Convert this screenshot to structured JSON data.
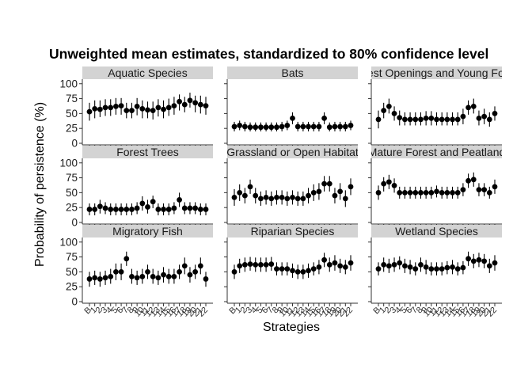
{
  "chart_data": {
    "type": "scatter",
    "title": "Unweighted mean estimates, standardized to 80% confidence level",
    "xlabel": "Strategies",
    "ylabel": "Probability of persistence (%)",
    "ylim": [
      0,
      105
    ],
    "yticks": [
      0,
      25,
      50,
      75,
      100
    ],
    "x": [
      "B",
      "1",
      "2",
      "3",
      "4",
      "5",
      "6",
      "7",
      "8",
      "9",
      "10",
      "11",
      "12",
      "13",
      "14",
      "15",
      "16",
      "17",
      "18",
      "19",
      "20",
      "21",
      "22"
    ],
    "grid": false,
    "error_bars": true,
    "marker_color": "#000000",
    "strip_color": "#d3d3d3",
    "facets": [
      {
        "name": "Aquatic Species",
        "values": [
          53,
          58,
          57,
          60,
          60,
          62,
          63,
          55,
          55,
          62,
          58,
          56,
          55,
          60,
          57,
          60,
          63,
          70,
          65,
          72,
          68,
          65,
          63
        ],
        "lower": [
          38,
          42,
          44,
          46,
          46,
          48,
          48,
          42,
          42,
          47,
          42,
          42,
          40,
          45,
          42,
          46,
          48,
          55,
          52,
          60,
          52,
          50,
          48
        ],
        "upper": [
          68,
          72,
          72,
          74,
          74,
          76,
          76,
          68,
          68,
          76,
          72,
          70,
          70,
          74,
          72,
          75,
          78,
          82,
          78,
          85,
          80,
          80,
          78
        ]
      },
      {
        "name": "Bats",
        "values": [
          28,
          30,
          28,
          27,
          27,
          27,
          27,
          27,
          27,
          28,
          30,
          42,
          28,
          28,
          28,
          28,
          28,
          42,
          27,
          28,
          28,
          28,
          30
        ],
        "lower": [
          20,
          22,
          20,
          20,
          20,
          20,
          20,
          20,
          20,
          20,
          22,
          32,
          20,
          20,
          20,
          20,
          20,
          32,
          20,
          20,
          20,
          20,
          22
        ],
        "upper": [
          36,
          38,
          36,
          35,
          35,
          35,
          35,
          35,
          35,
          36,
          38,
          52,
          36,
          36,
          36,
          36,
          36,
          52,
          35,
          36,
          36,
          36,
          38
        ]
      },
      {
        "name": "Forest Openings and Young Forest",
        "values": [
          40,
          55,
          62,
          50,
          43,
          40,
          40,
          40,
          40,
          42,
          42,
          40,
          40,
          40,
          40,
          40,
          45,
          60,
          62,
          42,
          45,
          40,
          50
        ],
        "lower": [
          25,
          42,
          50,
          38,
          30,
          30,
          30,
          30,
          30,
          30,
          30,
          30,
          30,
          30,
          30,
          30,
          32,
          48,
          50,
          30,
          32,
          28,
          38
        ],
        "upper": [
          55,
          68,
          75,
          62,
          55,
          52,
          52,
          52,
          52,
          54,
          54,
          52,
          52,
          52,
          52,
          52,
          58,
          72,
          75,
          55,
          58,
          52,
          62
        ]
      },
      {
        "name": "Forest Trees",
        "values": [
          22,
          22,
          27,
          24,
          22,
          22,
          22,
          22,
          22,
          24,
          32,
          26,
          35,
          22,
          22,
          22,
          24,
          38,
          24,
          24,
          24,
          22,
          22
        ],
        "lower": [
          12,
          12,
          15,
          14,
          12,
          12,
          12,
          12,
          12,
          14,
          20,
          15,
          24,
          12,
          12,
          12,
          14,
          26,
          14,
          14,
          14,
          12,
          12
        ],
        "upper": [
          32,
          32,
          38,
          34,
          32,
          32,
          32,
          32,
          32,
          34,
          44,
          38,
          45,
          32,
          32,
          32,
          34,
          50,
          34,
          34,
          34,
          32,
          32
        ]
      },
      {
        "name": "Grassland or Open Habitat",
        "values": [
          42,
          50,
          45,
          60,
          45,
          40,
          42,
          40,
          42,
          42,
          40,
          42,
          40,
          40,
          45,
          50,
          52,
          65,
          65,
          45,
          52,
          40,
          60
        ],
        "lower": [
          28,
          36,
          32,
          48,
          32,
          28,
          30,
          28,
          30,
          30,
          28,
          30,
          28,
          28,
          32,
          36,
          38,
          52,
          52,
          32,
          38,
          26,
          46
        ],
        "upper": [
          56,
          64,
          58,
          72,
          58,
          52,
          54,
          52,
          54,
          54,
          52,
          54,
          52,
          52,
          58,
          64,
          66,
          78,
          78,
          58,
          66,
          54,
          74
        ]
      },
      {
        "name": "Mature Forest and Peatland",
        "values": [
          50,
          65,
          68,
          62,
          50,
          50,
          50,
          50,
          50,
          50,
          50,
          52,
          50,
          50,
          50,
          50,
          55,
          70,
          72,
          55,
          55,
          50,
          60
        ],
        "lower": [
          38,
          52,
          56,
          50,
          40,
          40,
          40,
          40,
          40,
          40,
          40,
          42,
          40,
          40,
          40,
          40,
          44,
          58,
          60,
          44,
          44,
          40,
          48
        ],
        "upper": [
          62,
          76,
          80,
          74,
          60,
          60,
          60,
          60,
          60,
          60,
          60,
          62,
          60,
          60,
          60,
          60,
          66,
          82,
          84,
          66,
          66,
          60,
          72
        ]
      },
      {
        "name": "Migratory Fish",
        "values": [
          38,
          40,
          38,
          40,
          42,
          50,
          50,
          72,
          42,
          40,
          42,
          50,
          42,
          40,
          45,
          42,
          42,
          50,
          60,
          45,
          50,
          60,
          38
        ],
        "lower": [
          25,
          28,
          25,
          28,
          30,
          36,
          36,
          60,
          30,
          28,
          30,
          38,
          30,
          28,
          32,
          30,
          30,
          38,
          46,
          32,
          38,
          46,
          25
        ],
        "upper": [
          50,
          52,
          50,
          52,
          55,
          64,
          64,
          84,
          55,
          52,
          55,
          62,
          55,
          52,
          58,
          55,
          55,
          62,
          74,
          58,
          62,
          74,
          50
        ]
      },
      {
        "name": "Riparian Species",
        "values": [
          50,
          60,
          62,
          63,
          62,
          62,
          62,
          63,
          55,
          55,
          55,
          52,
          50,
          50,
          52,
          55,
          58,
          70,
          62,
          65,
          60,
          58,
          65
        ],
        "lower": [
          38,
          48,
          50,
          52,
          50,
          50,
          50,
          52,
          44,
          44,
          44,
          40,
          38,
          38,
          40,
          44,
          46,
          58,
          50,
          52,
          48,
          46,
          52
        ],
        "upper": [
          62,
          72,
          74,
          75,
          74,
          74,
          74,
          75,
          66,
          66,
          66,
          64,
          62,
          62,
          64,
          66,
          70,
          82,
          74,
          78,
          72,
          70,
          78
        ]
      },
      {
        "name": "Wetland Species",
        "values": [
          55,
          62,
          60,
          62,
          65,
          60,
          58,
          55,
          62,
          58,
          55,
          55,
          55,
          57,
          58,
          55,
          57,
          72,
          68,
          70,
          68,
          60,
          65
        ],
        "lower": [
          44,
          50,
          48,
          50,
          54,
          48,
          46,
          44,
          50,
          46,
          44,
          44,
          44,
          46,
          46,
          44,
          46,
          60,
          56,
          58,
          56,
          48,
          52
        ],
        "upper": [
          66,
          74,
          72,
          74,
          76,
          72,
          70,
          66,
          74,
          70,
          66,
          66,
          66,
          68,
          70,
          66,
          68,
          84,
          80,
          82,
          80,
          72,
          78
        ]
      }
    ]
  }
}
